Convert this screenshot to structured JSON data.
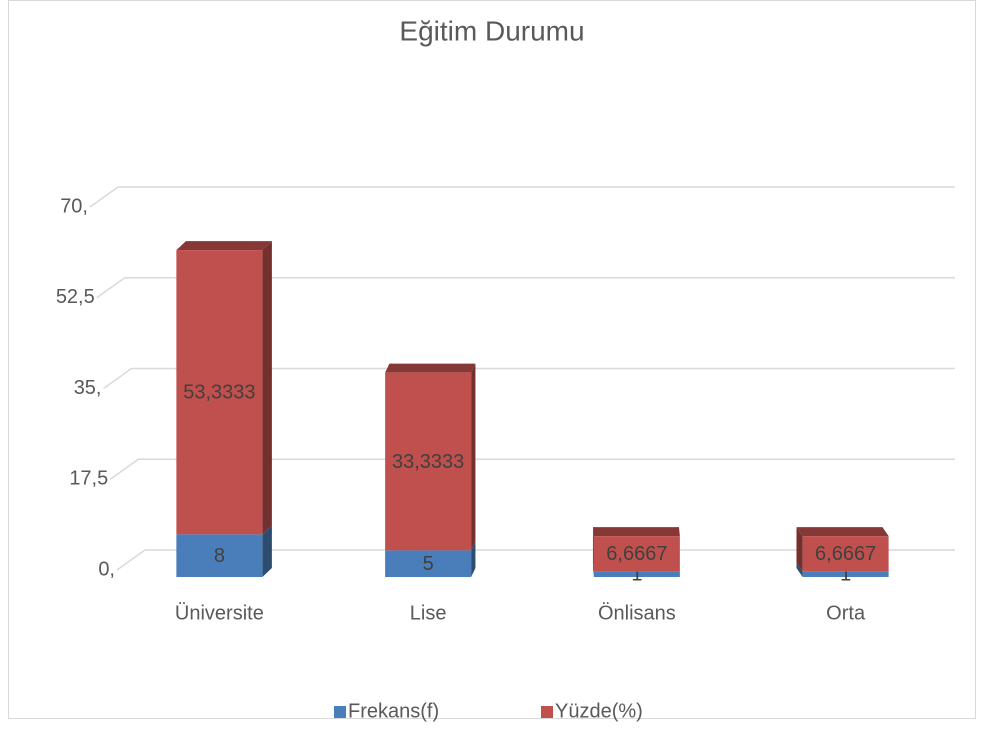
{
  "chart_data": {
    "type": "bar",
    "stacked": true,
    "title": "Eğitim Durumu",
    "categories": [
      "Üniversite",
      "Lise",
      "Önlisans",
      "Orta"
    ],
    "series": [
      {
        "name": "Frekans(f)",
        "color": "#4a7ebb",
        "values": [
          8,
          5,
          1,
          1
        ]
      },
      {
        "name": "Yüzde(%)",
        "color": "#c0504d",
        "values": [
          53.3333,
          33.3333,
          6.6667,
          6.6667
        ],
        "value_labels": [
          "53,3333",
          "33,3333",
          "6,6667",
          "6,6667"
        ]
      }
    ],
    "ylim": [
      0,
      70
    ],
    "yticks": [
      {
        "value": 0,
        "label": "0,"
      },
      {
        "value": 17.5,
        "label": "17,5"
      },
      {
        "value": 35,
        "label": "35,"
      },
      {
        "value": 52.5,
        "label": "52,5"
      },
      {
        "value": 70,
        "label": "70,"
      }
    ],
    "grid": true,
    "legend": "bottom"
  }
}
